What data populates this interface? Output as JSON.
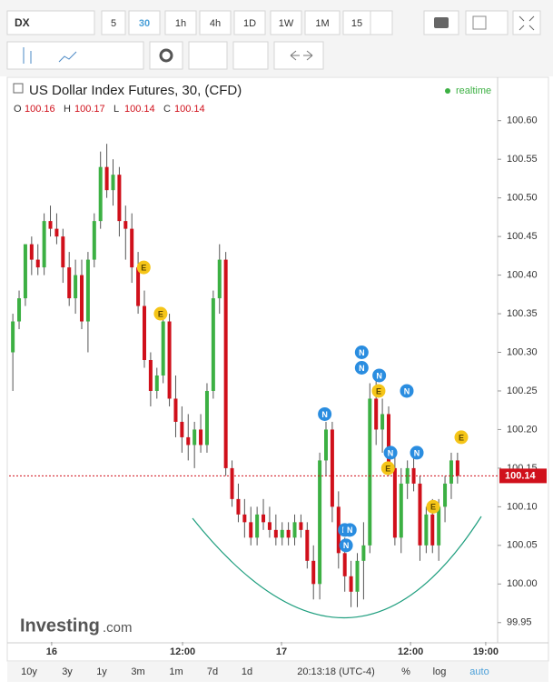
{
  "toolbar": {
    "symbol": "DX",
    "intervals": [
      "5",
      "30",
      "1h",
      "4h",
      "1D",
      "1W",
      "1M",
      "15"
    ]
  },
  "bottom_bar": {
    "ranges": [
      "10y",
      "3y",
      "1y",
      "3m",
      "1m",
      "7d",
      "1d"
    ],
    "clock": "20:13:18 (UTC-4)",
    "options": [
      "%",
      "log",
      "auto"
    ]
  },
  "chart_data": {
    "type": "candlestick",
    "title": "US Dollar Index Futures, 30, (CFD)",
    "status": "realtime",
    "logo": "Investing",
    "logo_suffix": ".com",
    "ohlc_legend": {
      "labels": [
        "O",
        "H",
        "L",
        "C"
      ],
      "values": [
        100.16,
        100.17,
        100.14,
        100.14
      ]
    },
    "last_price": {
      "value": 100.14,
      "label": "100.14"
    },
    "up_color": "#3cb043",
    "down_color": "#d0101b",
    "x": [
      0,
      1,
      2,
      3,
      4,
      5,
      6,
      7,
      8,
      9,
      10,
      11,
      12,
      13,
      14,
      15,
      16,
      17,
      18,
      19,
      20,
      21,
      22,
      23,
      24,
      25,
      26,
      27,
      28,
      29,
      30,
      31,
      32,
      33,
      34,
      35,
      36,
      37,
      38,
      39,
      40,
      41,
      42,
      43,
      44,
      45,
      46,
      47,
      48,
      49,
      50,
      51,
      52,
      53,
      54,
      55,
      56,
      57,
      58,
      59,
      60,
      61,
      62,
      63,
      64,
      65,
      66,
      67,
      68,
      69,
      70,
      71
    ],
    "open": [
      100.3,
      100.34,
      100.37,
      100.44,
      100.42,
      100.41,
      100.47,
      100.46,
      100.45,
      100.41,
      100.37,
      100.4,
      100.34,
      100.42,
      100.47,
      100.54,
      100.51,
      100.53,
      100.47,
      100.46,
      100.41,
      100.36,
      100.29,
      100.25,
      100.27,
      100.34,
      100.24,
      100.21,
      100.19,
      100.18,
      100.2,
      100.18,
      100.25,
      100.37,
      100.42,
      100.15,
      100.11,
      100.09,
      100.08,
      100.06,
      100.09,
      100.08,
      100.07,
      100.06,
      100.07,
      100.06,
      100.08,
      100.07,
      100.03,
      100.0,
      100.16,
      100.2,
      100.1,
      100.04,
      100.01,
      99.99,
      100.03,
      100.05,
      100.24,
      100.2,
      100.22,
      100.15,
      100.06,
      100.13,
      100.15,
      100.13,
      100.05,
      100.09,
      100.05,
      100.1,
      100.13,
      100.16
    ],
    "high": [
      100.35,
      100.38,
      100.44,
      100.45,
      100.44,
      100.48,
      100.49,
      100.48,
      100.46,
      100.43,
      100.42,
      100.42,
      100.43,
      100.48,
      100.56,
      100.57,
      100.55,
      100.54,
      100.49,
      100.48,
      100.43,
      100.38,
      100.3,
      100.28,
      100.35,
      100.35,
      100.27,
      100.23,
      100.22,
      100.21,
      100.22,
      100.26,
      100.38,
      100.44,
      100.43,
      100.16,
      100.13,
      100.11,
      100.1,
      100.1,
      100.11,
      100.1,
      100.09,
      100.08,
      100.08,
      100.09,
      100.09,
      100.08,
      100.05,
      100.17,
      100.21,
      100.21,
      100.12,
      100.06,
      100.03,
      100.04,
      100.08,
      100.26,
      100.27,
      100.24,
      100.23,
      100.17,
      100.15,
      100.16,
      100.17,
      100.14,
      100.1,
      100.11,
      100.11,
      100.14,
      100.17,
      100.17
    ],
    "low": [
      100.25,
      100.33,
      100.36,
      100.4,
      100.4,
      100.4,
      100.45,
      100.44,
      100.39,
      100.36,
      100.35,
      100.33,
      100.3,
      100.41,
      100.46,
      100.5,
      100.49,
      100.45,
      100.42,
      100.39,
      100.35,
      100.28,
      100.23,
      100.24,
      100.26,
      100.23,
      100.19,
      100.17,
      100.16,
      100.15,
      100.17,
      100.17,
      100.24,
      100.35,
      100.14,
      100.1,
      100.08,
      100.06,
      100.05,
      100.05,
      100.07,
      100.06,
      100.05,
      100.05,
      100.05,
      100.05,
      100.06,
      100.02,
      99.98,
      99.98,
      100.14,
      100.08,
      100.02,
      99.99,
      99.97,
      99.97,
      99.98,
      100.04,
      100.18,
      100.17,
      100.14,
      100.05,
      100.04,
      100.11,
      100.12,
      100.03,
      100.04,
      100.04,
      100.03,
      100.08,
      100.11,
      100.13
    ],
    "close": [
      100.34,
      100.37,
      100.44,
      100.42,
      100.41,
      100.47,
      100.46,
      100.45,
      100.41,
      100.37,
      100.4,
      100.34,
      100.42,
      100.47,
      100.54,
      100.51,
      100.53,
      100.47,
      100.46,
      100.41,
      100.36,
      100.29,
      100.25,
      100.27,
      100.34,
      100.24,
      100.21,
      100.19,
      100.18,
      100.2,
      100.18,
      100.25,
      100.37,
      100.42,
      100.15,
      100.11,
      100.09,
      100.08,
      100.06,
      100.09,
      100.08,
      100.07,
      100.06,
      100.07,
      100.06,
      100.08,
      100.07,
      100.03,
      100.0,
      100.16,
      100.2,
      100.1,
      100.04,
      100.01,
      99.99,
      100.03,
      100.05,
      100.24,
      100.2,
      100.22,
      100.15,
      100.06,
      100.13,
      100.15,
      100.13,
      100.05,
      100.09,
      100.05,
      100.1,
      100.13,
      100.16,
      100.14
    ],
    "events": [
      {
        "x": 20.9,
        "y": 100.41,
        "label": "E"
      },
      {
        "x": 23.6,
        "y": 100.35,
        "label": "E"
      },
      {
        "x": 49.8,
        "y": 100.22,
        "label": "N"
      },
      {
        "x": 53.0,
        "y": 100.07,
        "label": "N"
      },
      {
        "x": 53.8,
        "y": 100.07,
        "label": "N"
      },
      {
        "x": 53.2,
        "y": 100.05,
        "label": "N"
      },
      {
        "x": 55.7,
        "y": 100.3,
        "label": "N"
      },
      {
        "x": 55.7,
        "y": 100.28,
        "label": "N"
      },
      {
        "x": 58.5,
        "y": 100.27,
        "label": "N"
      },
      {
        "x": 58.4,
        "y": 100.25,
        "label": "E"
      },
      {
        "x": 62.9,
        "y": 100.25,
        "label": "N"
      },
      {
        "x": 60.3,
        "y": 100.17,
        "label": "N"
      },
      {
        "x": 64.5,
        "y": 100.17,
        "label": "N"
      },
      {
        "x": 59.9,
        "y": 100.15,
        "label": "E"
      },
      {
        "x": 67.1,
        "y": 100.1,
        "label": "E"
      },
      {
        "x": 71.6,
        "y": 100.19,
        "label": "E"
      }
    ],
    "xlim": [
      -0.6,
      77.4
    ],
    "xticks": [
      {
        "value": 6.2,
        "label": "16"
      },
      {
        "value": 27.1,
        "label": "12:00"
      },
      {
        "value": 42.9,
        "label": "17"
      },
      {
        "value": 63.5,
        "label": "12:00"
      },
      {
        "value": 75.5,
        "label": "19:00"
      }
    ],
    "ylim": [
      99.925,
      100.655
    ],
    "yticks": [
      99.95,
      {
        "value": 100.0,
        "label": "100.00"
      },
      100.05,
      {
        "value": 100.1,
        "label": "100.10"
      },
      100.15,
      {
        "value": 100.2,
        "label": "100.20"
      },
      100.25,
      {
        "value": 100.3,
        "label": "100.30"
      },
      100.35,
      {
        "value": 100.4,
        "label": "100.40"
      },
      100.45,
      {
        "value": 100.5,
        "label": "100.50"
      },
      100.55,
      {
        "value": 100.6,
        "label": "100.60"
      }
    ]
  }
}
